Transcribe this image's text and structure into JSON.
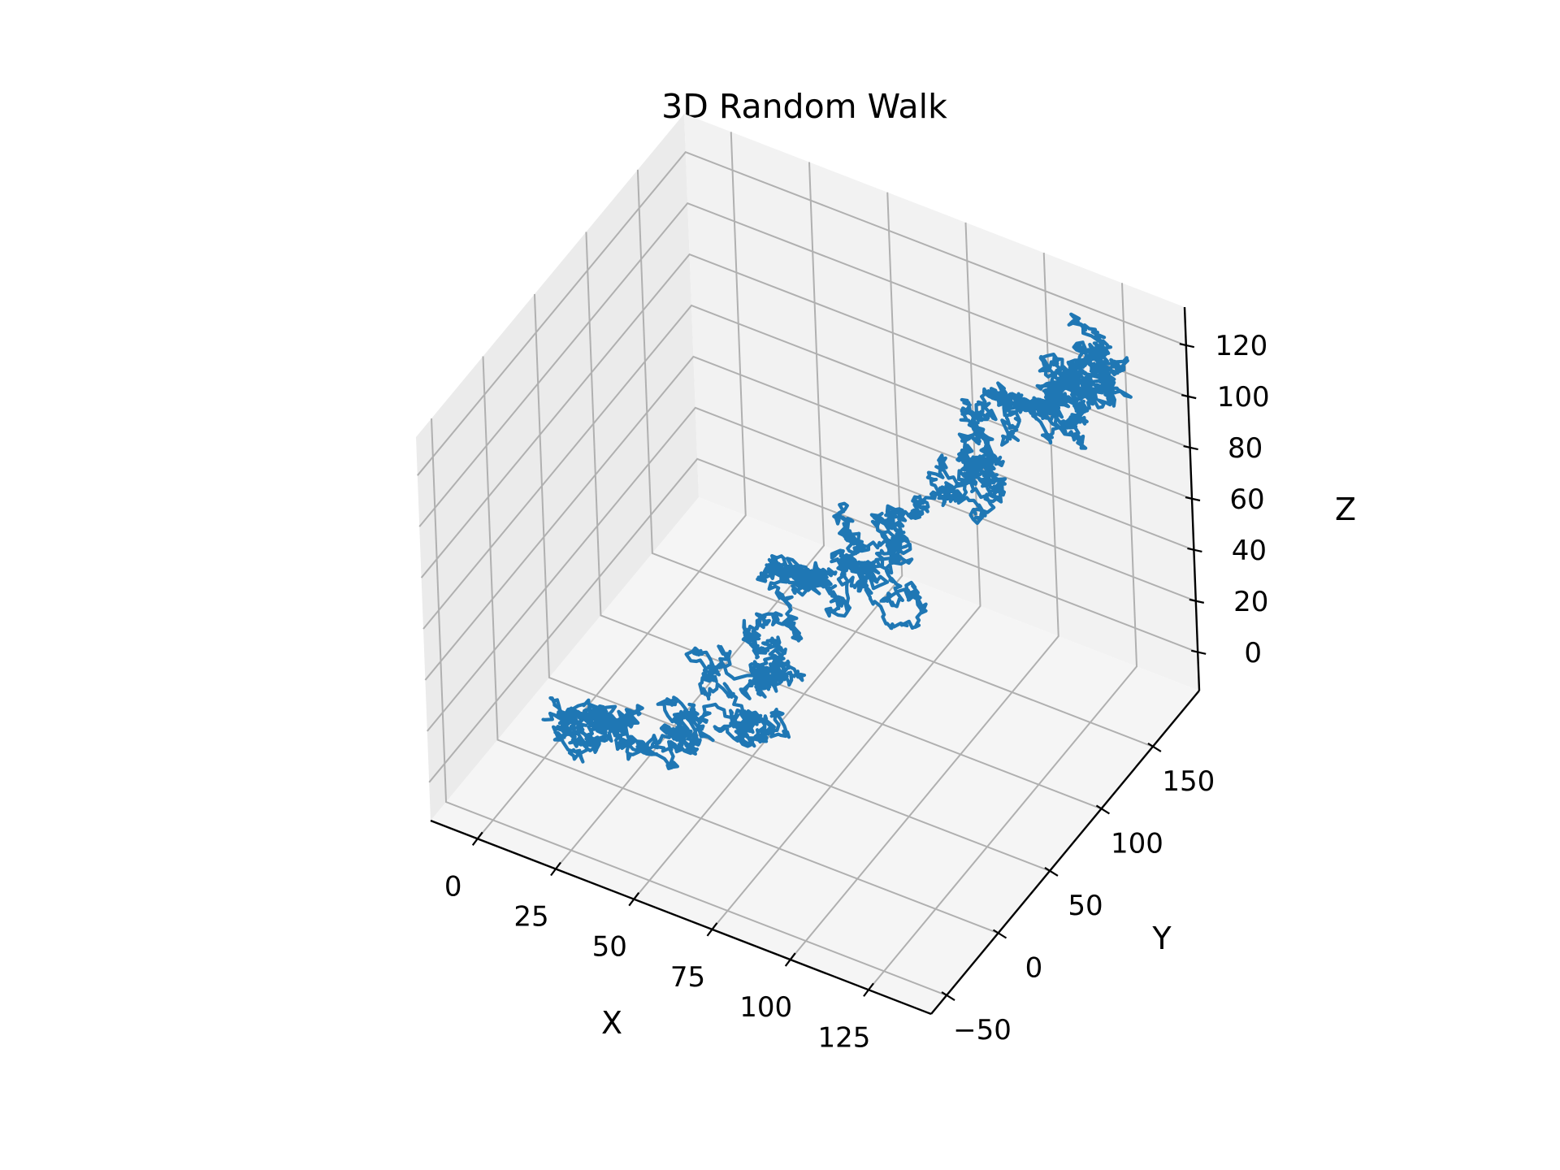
{
  "colors": {
    "series": "#1f77b4",
    "pane_left": "#ebebeb",
    "pane_back": "#f2f2f2",
    "pane_floor": "#f5f5f5",
    "grid": "#b0b0b0",
    "axis": "#000000"
  },
  "chart_data": {
    "type": "line",
    "projection": "3d",
    "title": "3D Random Walk",
    "xlabel": "X",
    "ylabel": "Y",
    "zlabel": "Z",
    "grid": true,
    "legend": "none",
    "xlim": [
      -15,
      145
    ],
    "ylim": [
      -65,
      195
    ],
    "zlim": [
      -15,
      135
    ],
    "x_ticks": [
      0,
      25,
      50,
      75,
      100,
      125
    ],
    "x_tick_labels": [
      "0",
      "25",
      "50",
      "75",
      "100",
      "125"
    ],
    "y_ticks": [
      -50,
      0,
      50,
      100,
      150
    ],
    "y_tick_labels": [
      "−50",
      "0",
      "50",
      "100",
      "150"
    ],
    "z_ticks": [
      0,
      20,
      40,
      60,
      80,
      100,
      120
    ],
    "z_tick_labels": [
      "0",
      "20",
      "40",
      "60",
      "80",
      "100",
      "120"
    ],
    "series": [
      {
        "description_waypoints_xyz": [
          [
            0,
            0,
            0
          ],
          [
            8,
            3,
            5
          ],
          [
            15,
            -5,
            4
          ],
          [
            22,
            8,
            10
          ],
          [
            30,
            2,
            6
          ],
          [
            38,
            15,
            12
          ],
          [
            45,
            10,
            8
          ],
          [
            52,
            22,
            15
          ],
          [
            50,
            35,
            20
          ],
          [
            58,
            40,
            25
          ],
          [
            62,
            52,
            30
          ],
          [
            55,
            60,
            38
          ],
          [
            60,
            72,
            42
          ],
          [
            68,
            80,
            45
          ],
          [
            75,
            88,
            40
          ],
          [
            82,
            95,
            48
          ],
          [
            78,
            105,
            55
          ],
          [
            86,
            112,
            62
          ],
          [
            92,
            120,
            58
          ],
          [
            98,
            128,
            70
          ],
          [
            95,
            138,
            80
          ],
          [
            103,
            145,
            88
          ],
          [
            110,
            150,
            95
          ],
          [
            118,
            158,
            92
          ],
          [
            125,
            165,
            100
          ],
          [
            130,
            170,
            105
          ],
          [
            128,
            180,
            112
          ],
          [
            120,
            175,
            118
          ],
          [
            112,
            168,
            110
          ],
          [
            105,
            160,
            100
          ]
        ]
      }
    ]
  }
}
